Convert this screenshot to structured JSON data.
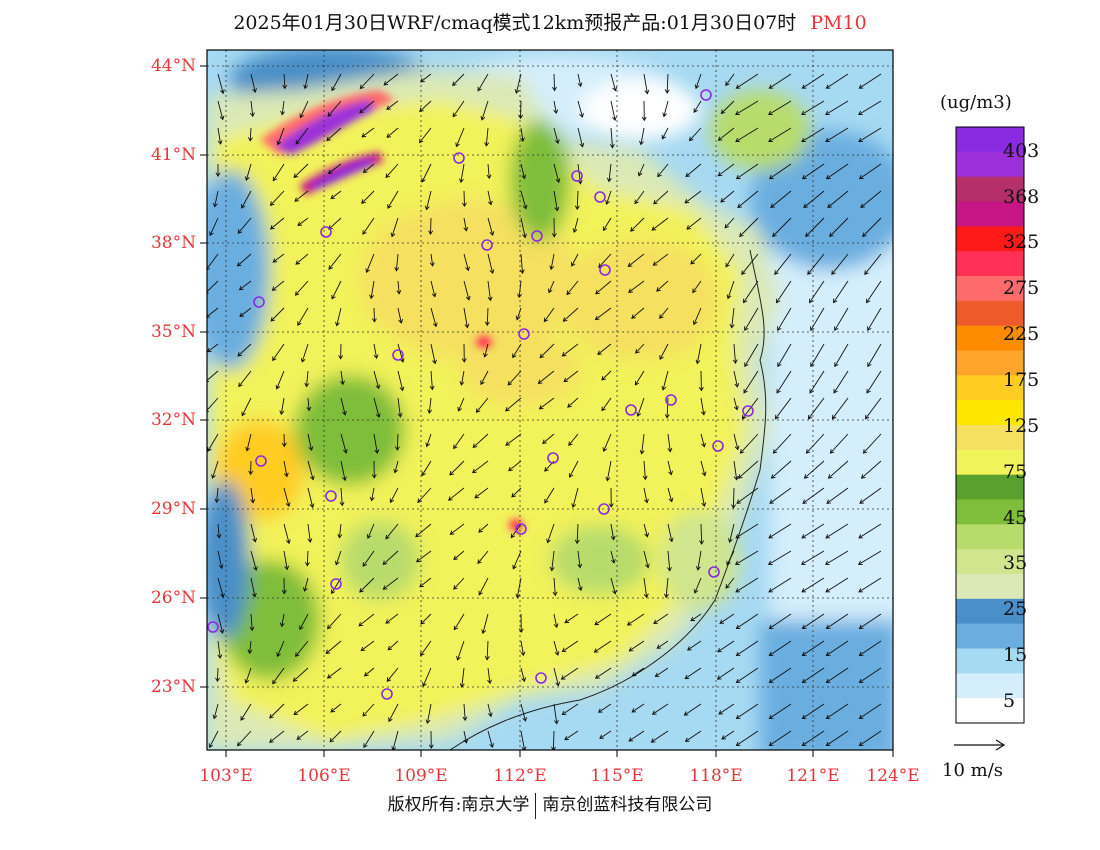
{
  "title": {
    "text": "2025年01月30日WRF/cmaq模式12km预报产品:01月30日07时",
    "product": "PM10"
  },
  "lat_labels": [
    "44°N",
    "41°N",
    "38°N",
    "35°N",
    "32°N",
    "29°N",
    "26°N",
    "23°N"
  ],
  "lon_labels": [
    "103°E",
    "106°E",
    "109°E",
    "112°E",
    "115°E",
    "118°E",
    "121°E",
    "124°E"
  ],
  "colorbar": {
    "unit": "(ug/m3)",
    "labels": [
      "403",
      "368",
      "325",
      "275",
      "225",
      "175",
      "125",
      "75",
      "45",
      "35",
      "25",
      "15",
      "5"
    ],
    "colors": [
      "#8a2be2",
      "#9b30d9",
      "#b5306b",
      "#c71585",
      "#ff1a1a",
      "#ff2f55",
      "#ff6b6b",
      "#ee5a2c",
      "#ff8c00",
      "#ffa52a",
      "#ffcc22",
      "#ffe600",
      "#f5e060",
      "#f2f25a",
      "#5aa02c",
      "#7fbe3a",
      "#b8dc6c",
      "#cfe58e",
      "#dbe9b6",
      "#4a8fc8",
      "#6aaee0",
      "#a6d9f2",
      "#d4eefb",
      "#ffffff"
    ]
  },
  "wind_reference": "10 m/s",
  "copyright": {
    "left": "版权所有:南京大学",
    "right": "南京创蓝科技有限公司"
  }
}
